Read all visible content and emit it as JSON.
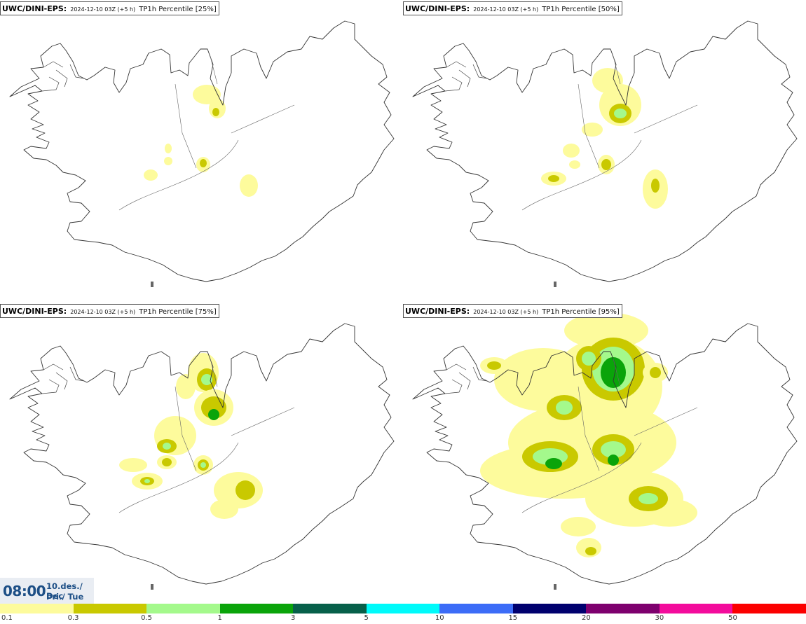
{
  "panels": [
    {
      "model": "UWC/DINI-EPS",
      "run": "2024-12-10 03Z (+5 h)",
      "param": "TP1h Percentile [25%]",
      "percentile": 25
    },
    {
      "model": "UWC/DINI-EPS",
      "run": "2024-12-10 03Z (+5 h)",
      "param": "TP1h Percentile [50%]",
      "percentile": 50
    },
    {
      "model": "UWC/DINI-EPS",
      "run": "2024-12-10 03Z (+5 h)",
      "param": "TP1h Percentile [75%]",
      "percentile": 75
    },
    {
      "model": "UWC/DINI-EPS",
      "run": "2024-12-10 03Z (+5 h)",
      "param": "TP1h Percentile [95%]",
      "percentile": 95
    }
  ],
  "valid_time": {
    "time": "08:00",
    "date_line1": "10.des./ Dec",
    "date_line2": "Þri./ Tue"
  },
  "legend": {
    "ticks": [
      "0.1",
      "0.3",
      "0.5",
      "1",
      "3",
      "5",
      "10",
      "15",
      "20",
      "30",
      "50"
    ],
    "colors": [
      "#fdfb9c",
      "#c9c900",
      "#a4f98c",
      "#0aa40a",
      "#07604a",
      "#00fafa",
      "#3c6cf7",
      "#00006e",
      "#7e006e",
      "#f30c9c",
      "#fb0000"
    ]
  }
}
